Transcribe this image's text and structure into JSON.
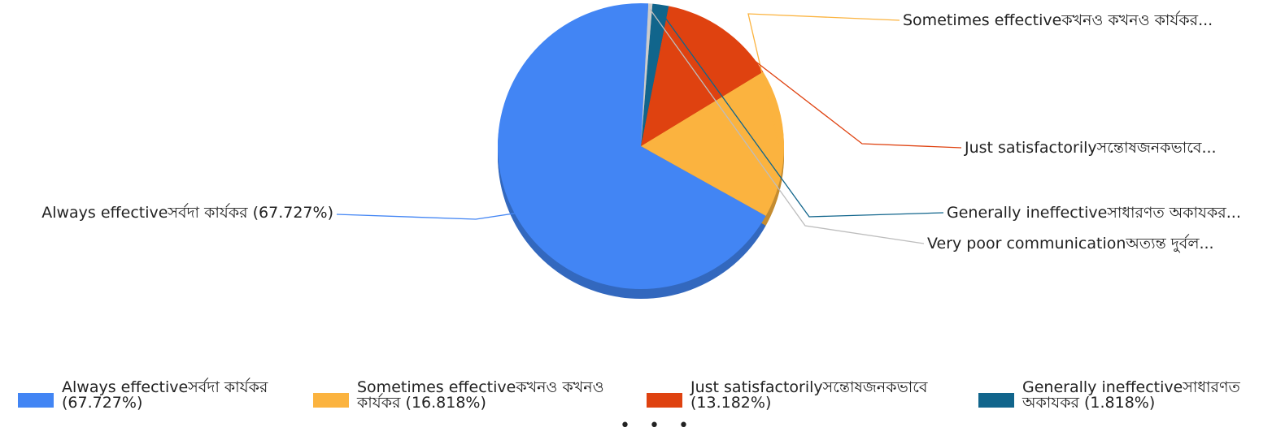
{
  "chart_data": {
    "type": "pie",
    "slices": [
      {
        "label": "Always effectiveসর্বদা কার্যকর",
        "value": 67.727,
        "pct_text": "67.727%",
        "color": "#4285f4",
        "callout": "Always effectiveসর্বদা কার্যকর (67.727%)"
      },
      {
        "label": "Sometimes effectiveকখনও কখনও কার্যকর",
        "value": 16.818,
        "pct_text": "16.818%",
        "color": "#fbb33f",
        "callout": "Sometimes effectiveকখনও কখনও কার্যকর..."
      },
      {
        "label": "Just satisfactorilyসন্তোষজনকভাবে",
        "value": 13.182,
        "pct_text": "13.182%",
        "color": "#df4210",
        "callout": "Just satisfactorilyসন্তোষজনকভাবে..."
      },
      {
        "label": "Generally ineffectiveসাধারণত অকাযকর",
        "value": 1.818,
        "pct_text": "1.818%",
        "color": "#11658c",
        "callout": "Generally ineffectiveসাধারণত অকাযকর..."
      },
      {
        "label": "Very poor communicationঅত্যন্ত দুর্বল",
        "value": 0.455,
        "pct_text": "0.455%",
        "color": "#cccccc",
        "callout": "Very poor communicationঅত্যন্ত দুর্বল..."
      }
    ],
    "legend": {
      "placement": "bottom",
      "items": [
        {
          "label": "Always effectiveসর্বদা কার্যকর (67.727%)",
          "color": "#4285f4"
        },
        {
          "label": "Sometimes effectiveকখনও কখনও কার্যকর (16.818%)",
          "color": "#fbb33f"
        },
        {
          "label": "Just satisfactorilyসন্তোষজনকভাবে (13.182%)",
          "color": "#df4210"
        },
        {
          "label": "Generally ineffectiveসাধারণত অকাযকর (1.818%)",
          "color": "#11658c"
        }
      ],
      "more_indicator": "• • •"
    },
    "style": "3d-pie"
  }
}
